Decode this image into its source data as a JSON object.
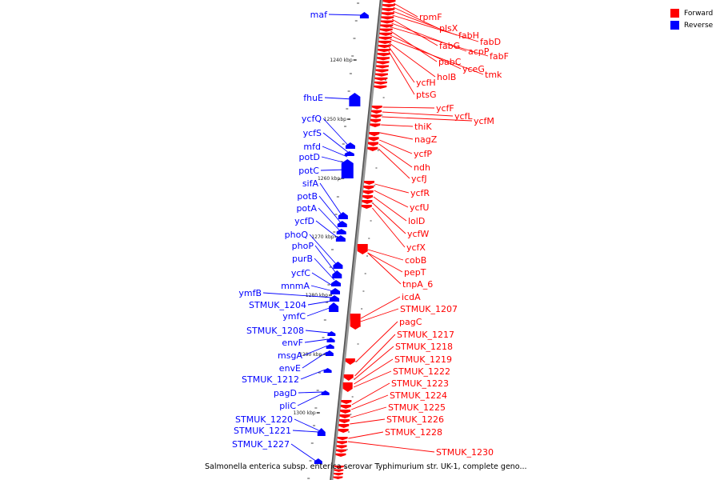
{
  "legend": {
    "forward_label": "Forward",
    "reverse_label": "Reverse",
    "forward_color": "#ff0000",
    "reverse_color": "#0000ff"
  },
  "caption": "Salmonella enterica subsp. enterica serovar Typhimurium str. UK-1, complete geno...",
  "axis_ticks": [
    "1240 kbp",
    "1250 kbp",
    "1260 kbp",
    "1270 kbp",
    "1280 kbp",
    "1290 kbp",
    "1300 kbp"
  ],
  "forward_genes": [
    "rpmF",
    "plsX",
    "fabH",
    "fabD",
    "fabG",
    "acpP",
    "fabF",
    "pabC",
    "yceG",
    "tmk",
    "holB",
    "ycfH",
    "ptsG",
    "ycfF",
    "ycfL",
    "ycfM",
    "thiK",
    "nagZ",
    "ycfP",
    "ndh",
    "ycfJ",
    "ycfR",
    "ycfU",
    "lolD",
    "ycfW",
    "ycfX",
    "cobB",
    "pepT",
    "tnpA_6",
    "icdA",
    "STMUK_1207",
    "pagC",
    "STMUK_1217",
    "STMUK_1218",
    "STMUK_1219",
    "STMUK_1222",
    "STMUK_1223",
    "STMUK_1224",
    "STMUK_1225",
    "STMUK_1226",
    "STMUK_1228",
    "STMUK_1230"
  ],
  "reverse_genes": [
    "maf",
    "fhuE",
    "ycfQ",
    "ycfS",
    "mfd",
    "potD",
    "potC",
    "sifA",
    "potB",
    "potA",
    "ycfD",
    "phoQ",
    "phoP",
    "purB",
    "ycfC",
    "mnmA",
    "ymfB",
    "STMUK_1204",
    "ymfC",
    "STMUK_1208",
    "envF",
    "msgA",
    "envE",
    "STMUK_1212",
    "pagD",
    "pliC",
    "STMUK_1220",
    "STMUK_1221",
    "STMUK_1227"
  ]
}
